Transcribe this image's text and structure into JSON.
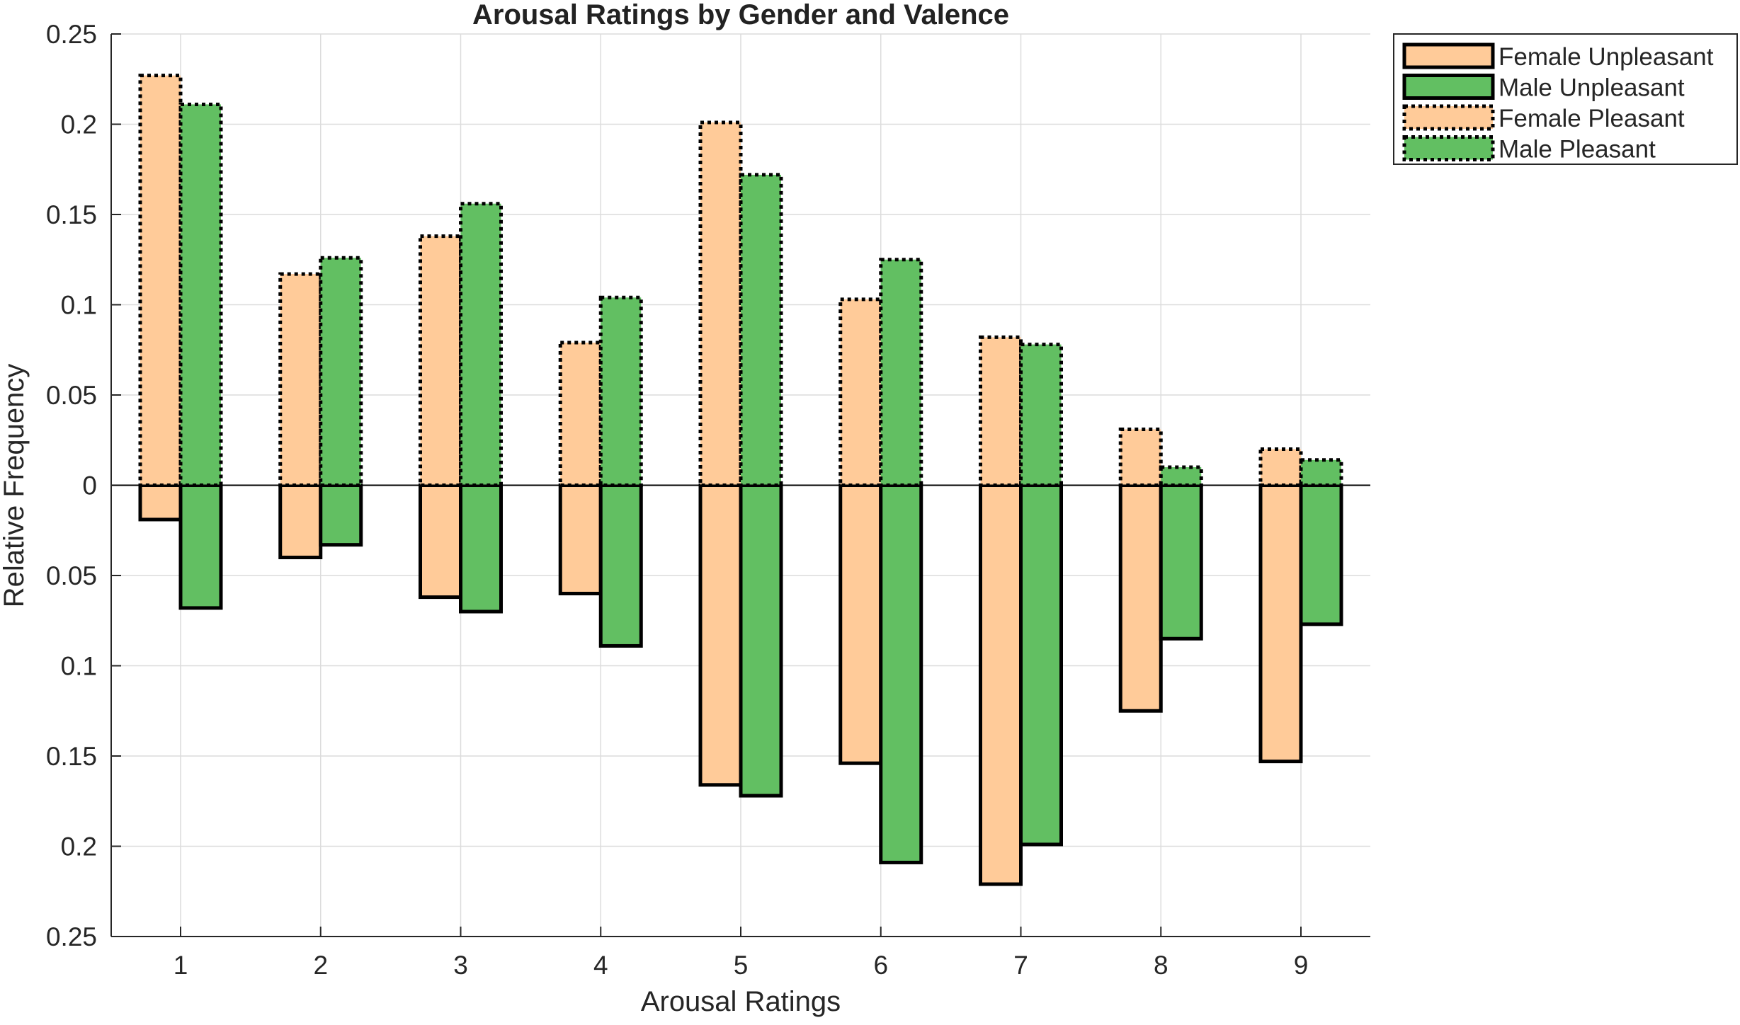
{
  "chart_data": {
    "type": "bar",
    "title": "Arousal Ratings by Gender and Valence",
    "xlabel": "Arousal Ratings",
    "ylabel": "Relative Frequency",
    "categories": [
      "1",
      "2",
      "3",
      "4",
      "5",
      "6",
      "7",
      "8",
      "9"
    ],
    "ylim": [
      -0.25,
      0.25
    ],
    "yticks": [
      0.25,
      0.2,
      0.15,
      0.1,
      0.05,
      0,
      -0.05,
      -0.1,
      -0.15,
      -0.2,
      -0.25
    ],
    "ytick_labels": [
      "0.25",
      "0.2",
      "0.15",
      "0.1",
      "0.05",
      "0",
      "0.05",
      "0.1",
      "0.15",
      "0.2",
      "0.25"
    ],
    "grid": true,
    "legend_position": "outside-top-right",
    "series": [
      {
        "name": "Female Unpleasant",
        "direction": "down",
        "color": "#FFCB99",
        "border": "solid",
        "values": [
          0.019,
          0.04,
          0.062,
          0.06,
          0.166,
          0.154,
          0.221,
          0.125,
          0.153
        ]
      },
      {
        "name": "Male Unpleasant",
        "direction": "down",
        "color": "#62BF62",
        "border": "solid",
        "values": [
          0.068,
          0.033,
          0.07,
          0.089,
          0.172,
          0.209,
          0.199,
          0.085,
          0.077
        ]
      },
      {
        "name": "Female Pleasant",
        "direction": "up",
        "color": "#FFCB99",
        "border": "dotted",
        "values": [
          0.227,
          0.117,
          0.138,
          0.079,
          0.201,
          0.103,
          0.082,
          0.031,
          0.02
        ]
      },
      {
        "name": "Male Pleasant",
        "direction": "up",
        "color": "#62BF62",
        "border": "dotted",
        "values": [
          0.211,
          0.126,
          0.156,
          0.104,
          0.172,
          0.125,
          0.078,
          0.01,
          0.014
        ]
      }
    ]
  }
}
